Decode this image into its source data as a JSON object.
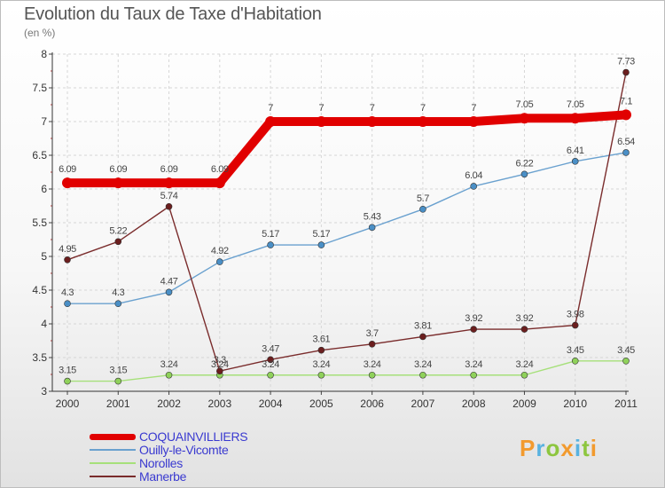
{
  "header": {
    "title": "Evolution du Taux de Taxe d'Habitation",
    "unit": "(en %)"
  },
  "chart_data": {
    "type": "line",
    "title": "Evolution du Taux de Taxe d'Habitation",
    "subtitle": "(en %)",
    "xlabel": "",
    "ylabel": "",
    "x": [
      "2000",
      "2001",
      "2002",
      "2003",
      "2004",
      "2005",
      "2006",
      "2007",
      "2008",
      "2009",
      "2010",
      "2011"
    ],
    "ylim": [
      3,
      8
    ],
    "yticks": [
      "3",
      "3.5",
      "4",
      "4.5",
      "5",
      "5.5",
      "6",
      "6.5",
      "7",
      "7.5",
      "8"
    ],
    "grid": true,
    "legend_position": "bottom-left",
    "series": [
      {
        "name": "COQUAINVILLIERS",
        "color": "#e10000",
        "values": [
          6.09,
          6.09,
          6.09,
          6.09,
          7,
          7,
          7,
          7,
          7,
          7.05,
          7.05,
          7.1
        ],
        "labels": [
          "6.09",
          "6.09",
          "6.09",
          "6.09",
          "7",
          "7",
          "7",
          "7",
          "7",
          "7.05",
          "7.05",
          "7.1"
        ]
      },
      {
        "name": "Ouilly-le-Vicomte",
        "color": "#6aa1cf",
        "marker": "#4a8fc6",
        "values": [
          4.3,
          4.3,
          4.47,
          4.92,
          5.17,
          5.17,
          5.43,
          5.7,
          6.04,
          6.22,
          6.41,
          6.54
        ],
        "labels": [
          "4.3",
          "4.3",
          "4.47",
          "4.92",
          "5.17",
          "5.17",
          "5.43",
          "5.7",
          "6.04",
          "6.22",
          "6.41",
          "6.54"
        ]
      },
      {
        "name": "Norolles",
        "color": "#a6e07a",
        "marker": "#8fd15a",
        "values": [
          3.15,
          3.15,
          3.24,
          3.24,
          3.24,
          3.24,
          3.24,
          3.24,
          3.24,
          3.24,
          3.45,
          3.45
        ],
        "labels": [
          "3.15",
          "3.15",
          "3.24",
          "3.24",
          "3.24",
          "3.24",
          "3.24",
          "3.24",
          "3.24",
          "3.24",
          "3.45",
          "3.45"
        ]
      },
      {
        "name": "Manerbe",
        "color": "#7a2c2c",
        "marker": "#6b1e1e",
        "values": [
          4.95,
          5.22,
          5.74,
          3.3,
          3.47,
          3.61,
          3.7,
          3.81,
          3.92,
          3.92,
          3.98,
          7.73
        ],
        "labels": [
          "4.95",
          "5.22",
          "5.74",
          "3.3",
          "3.47",
          "3.61",
          "3.7",
          "3.81",
          "3.92",
          "3.92",
          "3.98",
          "7.73"
        ]
      }
    ]
  },
  "logo": {
    "letters": [
      "P",
      "r",
      "o",
      "x",
      "i",
      "t",
      "i"
    ],
    "colors": [
      "#f29a2e",
      "#58b2e0",
      "#8dc63f",
      "#f29a2e",
      "#58b2e0",
      "#8dc63f",
      "#f29a2e"
    ]
  }
}
